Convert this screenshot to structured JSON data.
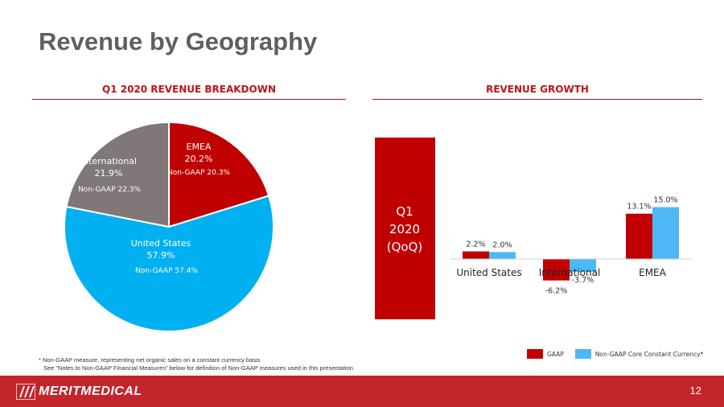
{
  "slide": {
    "title": "Revenue by Geography",
    "page_number": "12",
    "footnote_line1": "* Non-GAAP measure, representing net organic sales on a constant currency basis",
    "footnote_line2": "See “Notes to Non-GAAP Financial Measures” below for definition of Non-GAAP measures used in this presentation",
    "logo_text": "MERITMEDICAL"
  },
  "chart_data": [
    {
      "type": "pie",
      "title": "Q1 2020 REVENUE BREAKDOWN",
      "slices": [
        {
          "label": "EMEA",
          "value": 20.2,
          "value_label": "20.2%",
          "non_gaap": "Non-GAAP 20.3%",
          "color": "#c00000"
        },
        {
          "label": "United States",
          "value": 57.9,
          "value_label": "57.9%",
          "non_gaap": "Non-GAAP 57.4%",
          "color": "#00b0f0"
        },
        {
          "label": "International",
          "value": 21.9,
          "value_label": "21.9%",
          "non_gaap": "Non-GAAP 22.3%",
          "color": "#7f7778"
        }
      ]
    },
    {
      "type": "bar",
      "title": "REVENUE GROWTH",
      "period_label": [
        "Q1",
        "2020",
        "(QoQ)"
      ],
      "categories": [
        "United States",
        "International",
        "EMEA"
      ],
      "series": [
        {
          "name": "GAAP",
          "values": [
            2.2,
            -6.2,
            13.1
          ],
          "labels": [
            "2.2%",
            "-6.2%",
            "13.1%"
          ],
          "color": "#c00000"
        },
        {
          "name": "Non-GAAP Core Constant Currency*",
          "values": [
            2.0,
            -3.7,
            15.0
          ],
          "labels": [
            "2.0%",
            "-3.7%",
            "15.0%"
          ],
          "color": "#4db8f5"
        }
      ],
      "ylim": [
        -8,
        17
      ]
    }
  ]
}
